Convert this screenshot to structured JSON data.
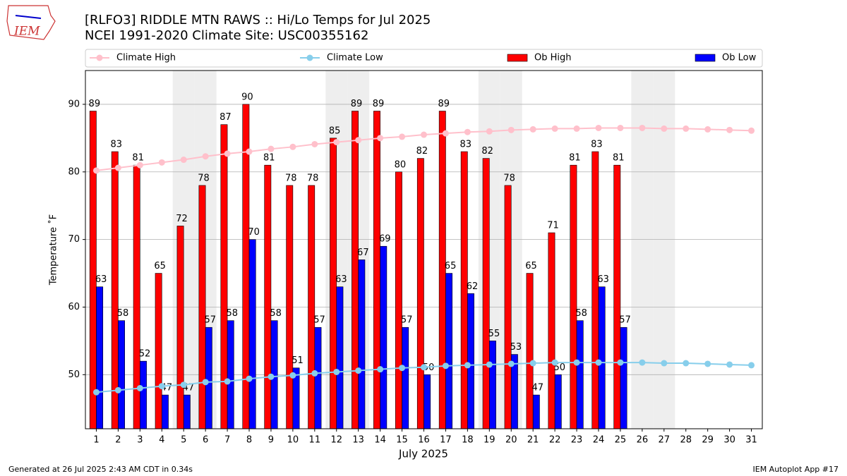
{
  "logo_text": "IEM",
  "footer_left": "Generated at 26 Jul 2025 2:43 AM CDT in 0.34s",
  "footer_right": "IEM Autoplot App #17",
  "chart_data": {
    "type": "bar",
    "title": "[RLFO3] RIDDLE MTN RAWS :: Hi/Lo Temps for Jul 2025",
    "subtitle": "NCEI 1991-2020 Climate Site: USC00355162",
    "xlabel": "July 2025",
    "ylabel": "Temperature ˚F",
    "categories": [
      "1",
      "2",
      "3",
      "4",
      "5",
      "6",
      "7",
      "8",
      "9",
      "10",
      "11",
      "12",
      "13",
      "14",
      "15",
      "16",
      "17",
      "18",
      "19",
      "20",
      "21",
      "22",
      "23",
      "24",
      "25",
      "26",
      "27",
      "28",
      "29",
      "30",
      "31"
    ],
    "shaded": [
      "5",
      "6",
      "12",
      "13",
      "19",
      "20",
      "26",
      "27"
    ],
    "ylim": [
      42,
      95
    ],
    "yticks": [
      50,
      60,
      70,
      80,
      90
    ],
    "grid": true,
    "legend": "top",
    "series": [
      {
        "name": "Climate High",
        "type": "line",
        "color": "#ffc0cb",
        "values": [
          80.2,
          80.6,
          81.0,
          81.4,
          81.8,
          82.3,
          82.7,
          83.0,
          83.4,
          83.7,
          84.1,
          84.4,
          84.7,
          85.0,
          85.2,
          85.5,
          85.7,
          85.9,
          86.0,
          86.2,
          86.3,
          86.4,
          86.4,
          86.5,
          86.5,
          86.5,
          86.4,
          86.4,
          86.3,
          86.2,
          86.1
        ]
      },
      {
        "name": "Climate Low",
        "type": "line",
        "color": "#87ceeb",
        "values": [
          47.4,
          47.7,
          48.0,
          48.3,
          48.5,
          48.9,
          49.0,
          49.4,
          49.7,
          49.9,
          50.2,
          50.4,
          50.6,
          50.8,
          51.0,
          51.1,
          51.3,
          51.4,
          51.5,
          51.6,
          51.7,
          51.8,
          51.8,
          51.8,
          51.8,
          51.8,
          51.7,
          51.7,
          51.6,
          51.5,
          51.4
        ]
      },
      {
        "name": "Ob High",
        "type": "bar",
        "color": "#ff0000",
        "values": [
          89,
          83,
          81,
          65,
          72,
          78,
          87,
          90,
          81,
          78,
          78,
          85,
          89,
          89,
          80,
          82,
          89,
          83,
          82,
          78,
          65,
          71,
          81,
          83,
          81,
          null,
          null,
          null,
          null,
          null,
          null
        ]
      },
      {
        "name": "Ob Low",
        "type": "bar",
        "color": "#0000ff",
        "values": [
          63,
          58,
          52,
          47,
          47,
          57,
          58,
          70,
          58,
          51,
          57,
          63,
          67,
          69,
          57,
          50,
          65,
          62,
          55,
          53,
          47,
          50,
          58,
          63,
          57,
          null,
          null,
          null,
          null,
          null,
          null
        ]
      }
    ]
  }
}
